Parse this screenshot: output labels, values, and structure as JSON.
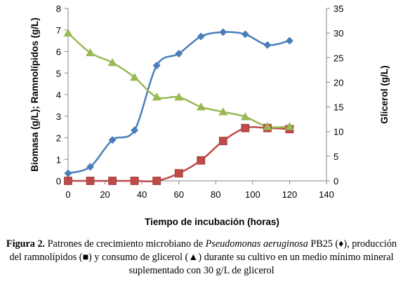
{
  "chart_data": {
    "type": "line",
    "xlabel": "Tiempo de incubación (horas)",
    "ylabel_left": "Biomasa (g/L); Ramnolípidos (g/L)",
    "ylabel_right": "Glicerol (g/L)",
    "xlim": [
      0,
      140
    ],
    "ylim_left": [
      0,
      8
    ],
    "ylim_right": [
      0,
      35
    ],
    "x_ticks": [
      0,
      20,
      40,
      60,
      80,
      100,
      120,
      140
    ],
    "y_left_ticks": [
      0,
      1,
      2,
      3,
      4,
      5,
      6,
      7,
      8
    ],
    "y_right_ticks": [
      0,
      5,
      10,
      15,
      20,
      25,
      30,
      35
    ],
    "grid": false,
    "series": [
      {
        "axis": "left",
        "marker": "diamond",
        "color": "#4a7ebb",
        "x": [
          0,
          12,
          24,
          36,
          48,
          60,
          72,
          84,
          96,
          108,
          120
        ],
        "values": [
          0.35,
          0.65,
          1.9,
          2.35,
          5.35,
          5.9,
          6.7,
          6.9,
          6.8,
          6.3,
          6.5
        ]
      },
      {
        "axis": "left",
        "marker": "square",
        "color": "#be4b48",
        "x": [
          0,
          12,
          24,
          36,
          48,
          60,
          72,
          84,
          96,
          108,
          120
        ],
        "values": [
          0,
          0,
          0,
          0,
          0,
          0.35,
          0.95,
          1.85,
          2.45,
          2.45,
          2.4
        ]
      },
      {
        "axis": "right",
        "marker": "triangle",
        "color": "#98b954",
        "x": [
          0,
          12,
          24,
          36,
          48,
          60,
          72,
          84,
          96,
          108,
          120
        ],
        "values": [
          30,
          26,
          24,
          21,
          17,
          17,
          15,
          14,
          13,
          11,
          11
        ]
      }
    ]
  },
  "caption": {
    "label": "Figura 2.",
    "text_1": " Patrones de crecimiento microbiano de ",
    "organism": "Pseudomonas aeruginosa",
    "text_2": " PB25 (♦), producción del ramnolípidos (■) y consumo de glicerol (▲) durante su cultivo en un medio mínimo mineral suplementado con 30 g/L de glicerol"
  }
}
